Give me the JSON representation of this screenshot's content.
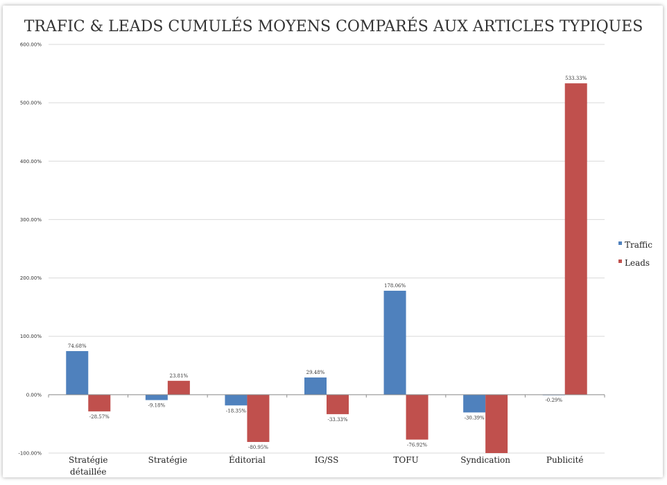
{
  "chart_data": {
    "type": "bar",
    "title": "TRAFIC & LEADS CUMULÉS MOYENS COMPARÉS AUX ARTICLES TYPIQUES",
    "xlabel": "",
    "ylabel": "",
    "categories": [
      [
        "Stratégie",
        "détaillée"
      ],
      [
        "Stratégie"
      ],
      [
        "Éditorial"
      ],
      [
        "IG/SS"
      ],
      [
        "TOFU"
      ],
      [
        "Syndication"
      ],
      [
        "Publicité"
      ]
    ],
    "series": [
      {
        "name": "Traffic",
        "color": "#4f81bd",
        "values": [
          74.68,
          -9.18,
          -18.35,
          29.48,
          178.06,
          -30.39,
          -0.29
        ],
        "labels": [
          "74.68%",
          "-9.18%",
          "-18.35%",
          "29.48%",
          "178.06%",
          "-30.39%",
          "-0.29%"
        ]
      },
      {
        "name": "Leads",
        "color": "#c0504d",
        "values": [
          -28.57,
          23.81,
          -80.95,
          -33.33,
          -76.92,
          -100.0,
          533.33
        ],
        "labels": [
          "-28.57%",
          "23.81%",
          "-80.95%",
          "-33.33%",
          "-76.92%",
          "",
          "533.33%"
        ]
      }
    ],
    "ylim": [
      -100,
      600
    ],
    "yticks": [
      -100,
      0,
      100,
      200,
      300,
      400,
      500,
      600
    ],
    "ytick_labels": [
      "-100.00%",
      "0.00%",
      "100.00%",
      "200.00%",
      "300.00%",
      "400.00%",
      "500.00%",
      "600.00%"
    ],
    "grid": true,
    "legend_position": "right"
  }
}
